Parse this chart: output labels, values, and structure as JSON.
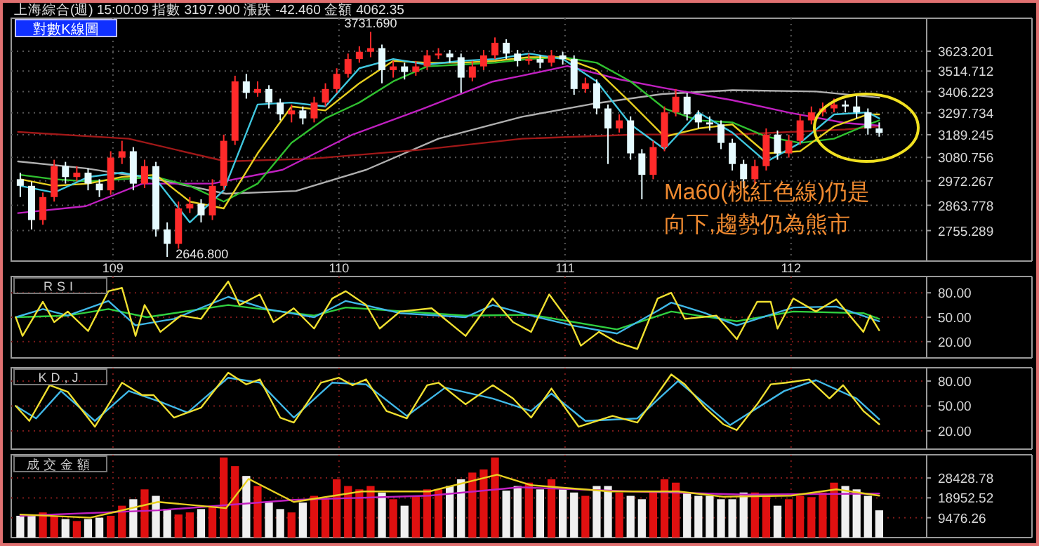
{
  "chart_data": [
    {
      "type": "candlestick",
      "title": "上海綜合(週) 15:00:09 指數 3197.900 漲跌 -42.460 金額 4062.35",
      "subtitle": "對數K線圖",
      "log": true,
      "grid": true,
      "xlim": [
        108.55,
        112.6
      ],
      "xticks": [
        109,
        110,
        111,
        112
      ],
      "ylim": [
        2630,
        3810
      ],
      "yticks": [
        2755.289,
        2863.778,
        2972.267,
        3080.756,
        3189.245,
        3297.734,
        3406.223,
        3514.712,
        3623.201
      ],
      "x": [
        108.59,
        108.64,
        108.69,
        108.74,
        108.79,
        108.84,
        108.89,
        108.94,
        108.99,
        109.04,
        109.09,
        109.14,
        109.19,
        109.24,
        109.29,
        109.34,
        109.39,
        109.44,
        109.49,
        109.54,
        109.59,
        109.64,
        109.69,
        109.74,
        109.79,
        109.84,
        109.89,
        109.94,
        109.99,
        110.04,
        110.09,
        110.14,
        110.19,
        110.24,
        110.29,
        110.34,
        110.39,
        110.44,
        110.49,
        110.54,
        110.59,
        110.64,
        110.69,
        110.74,
        110.79,
        110.84,
        110.89,
        110.94,
        110.99,
        111.04,
        111.09,
        111.14,
        111.19,
        111.24,
        111.29,
        111.34,
        111.39,
        111.44,
        111.49,
        111.54,
        111.59,
        111.64,
        111.69,
        111.74,
        111.79,
        111.84,
        111.89,
        111.94,
        111.99,
        112.04,
        112.09,
        112.14,
        112.19,
        112.24,
        112.29,
        112.34,
        112.39
      ],
      "ohlc": [
        [
          2980,
          3010,
          2900,
          2950
        ],
        [
          2950,
          2970,
          2760,
          2800
        ],
        [
          2800,
          2920,
          2780,
          2900
        ],
        [
          2900,
          3070,
          2880,
          3040
        ],
        [
          3040,
          3060,
          2960,
          2990
        ],
        [
          2990,
          3040,
          2970,
          3010
        ],
        [
          3010,
          3030,
          2930,
          2960
        ],
        [
          2960,
          2980,
          2900,
          2930
        ],
        [
          2930,
          3110,
          2910,
          3080
        ],
        [
          3080,
          3160,
          3050,
          3110
        ],
        [
          3110,
          3130,
          2930,
          2960
        ],
        [
          2960,
          3070,
          2940,
          3040
        ],
        [
          3040,
          3060,
          2730,
          2760
        ],
        [
          2760,
          2790,
          2646.8,
          2700
        ],
        [
          2700,
          2880,
          2680,
          2850
        ],
        [
          2850,
          2900,
          2830,
          2870
        ],
        [
          2870,
          2890,
          2790,
          2820
        ],
        [
          2820,
          2980,
          2800,
          2950
        ],
        [
          2950,
          3190,
          2930,
          3160
        ],
        [
          3160,
          3490,
          3140,
          3460
        ],
        [
          3460,
          3500,
          3370,
          3400
        ],
        [
          3400,
          3460,
          3380,
          3420
        ],
        [
          3420,
          3440,
          3320,
          3350
        ],
        [
          3350,
          3370,
          3260,
          3290
        ],
        [
          3290,
          3340,
          3250,
          3310
        ],
        [
          3310,
          3330,
          3240,
          3270
        ],
        [
          3270,
          3380,
          3250,
          3350
        ],
        [
          3350,
          3450,
          3330,
          3420
        ],
        [
          3420,
          3530,
          3400,
          3500
        ],
        [
          3500,
          3610,
          3480,
          3580
        ],
        [
          3580,
          3650,
          3560,
          3620
        ],
        [
          3620,
          3731.69,
          3590,
          3640
        ],
        [
          3640,
          3660,
          3450,
          3520
        ],
        [
          3520,
          3570,
          3480,
          3540
        ],
        [
          3540,
          3560,
          3470,
          3510
        ],
        [
          3510,
          3570,
          3490,
          3540
        ],
        [
          3540,
          3630,
          3520,
          3600
        ],
        [
          3600,
          3640,
          3580,
          3610
        ],
        [
          3610,
          3630,
          3560,
          3590
        ],
        [
          3590,
          3610,
          3400,
          3480
        ],
        [
          3480,
          3570,
          3460,
          3540
        ],
        [
          3540,
          3630,
          3520,
          3600
        ],
        [
          3600,
          3700,
          3580,
          3670
        ],
        [
          3670,
          3690,
          3580,
          3610
        ],
        [
          3610,
          3630,
          3540,
          3570
        ],
        [
          3570,
          3610,
          3550,
          3580
        ],
        [
          3580,
          3600,
          3530,
          3560
        ],
        [
          3560,
          3630,
          3540,
          3600
        ],
        [
          3600,
          3620,
          3550,
          3580
        ],
        [
          3580,
          3600,
          3390,
          3420
        ],
        [
          3420,
          3480,
          3400,
          3450
        ],
        [
          3450,
          3470,
          3290,
          3320
        ],
        [
          3320,
          3340,
          3050,
          3220
        ],
        [
          3220,
          3290,
          3200,
          3260
        ],
        [
          3260,
          3280,
          3070,
          3100
        ],
        [
          3100,
          3120,
          2890,
          3000
        ],
        [
          3000,
          3160,
          2980,
          3130
        ],
        [
          3130,
          3330,
          3110,
          3300
        ],
        [
          3300,
          3420,
          3280,
          3380
        ],
        [
          3380,
          3400,
          3260,
          3290
        ],
        [
          3290,
          3310,
          3220,
          3250
        ],
        [
          3250,
          3280,
          3210,
          3240
        ],
        [
          3240,
          3260,
          3120,
          3150
        ],
        [
          3150,
          3170,
          3020,
          3050
        ],
        [
          3050,
          3070,
          2940,
          2980
        ],
        [
          2980,
          3070,
          2960,
          3040
        ],
        [
          3040,
          3220,
          3020,
          3190
        ],
        [
          3190,
          3210,
          3070,
          3100
        ],
        [
          3100,
          3190,
          3080,
          3160
        ],
        [
          3160,
          3290,
          3140,
          3260
        ],
        [
          3260,
          3330,
          3240,
          3300
        ],
        [
          3300,
          3350,
          3280,
          3320
        ],
        [
          3320,
          3370,
          3300,
          3340
        ],
        [
          3340,
          3360,
          3300,
          3330
        ],
        [
          3330,
          3390,
          3270,
          3300
        ],
        [
          3300,
          3320,
          3190,
          3220
        ],
        [
          3220,
          3250,
          3180,
          3197.9
        ]
      ],
      "colors": [
        "#e6fbff",
        "#e6fbff",
        "#ff2a2a",
        "#ff2a2a",
        "#e6fbff",
        "#ff2a2a",
        "#e6fbff",
        "#e6fbff",
        "#ff2a2a",
        "#ff2a2a",
        "#e6fbff",
        "#ff2a2a",
        "#e6fbff",
        "#e6fbff",
        "#ff2a2a",
        "#ff2a2a",
        "#e6fbff",
        "#ff2a2a",
        "#ff2a2a",
        "#ff2a2a",
        "#e6fbff",
        "#ff2a2a",
        "#e6fbff",
        "#e6fbff",
        "#ff2a2a",
        "#e6fbff",
        "#ff2a2a",
        "#ff2a2a",
        "#ff2a2a",
        "#ff2a2a",
        "#ff2a2a",
        "#ff2a2a",
        "#e6fbff",
        "#ff2a2a",
        "#e6fbff",
        "#ff2a2a",
        "#ff2a2a",
        "#ff2a2a",
        "#e6fbff",
        "#e6fbff",
        "#ff2a2a",
        "#ff2a2a",
        "#ff2a2a",
        "#e6fbff",
        "#e6fbff",
        "#ff2a2a",
        "#e6fbff",
        "#ff2a2a",
        "#e6fbff",
        "#e6fbff",
        "#ff2a2a",
        "#e6fbff",
        "#e6fbff",
        "#ff2a2a",
        "#e6fbff",
        "#e6fbff",
        "#ff2a2a",
        "#ff2a2a",
        "#ff2a2a",
        "#e6fbff",
        "#e6fbff",
        "#e6fbff",
        "#e6fbff",
        "#e6fbff",
        "#e6fbff",
        "#ff2a2a",
        "#ff2a2a",
        "#e6fbff",
        "#ff2a2a",
        "#ff2a2a",
        "#ff2a2a",
        "#ff2a2a",
        "#ff2a2a",
        "#e6fbff",
        "#e6fbff",
        "#e6fbff",
        "#e6fbff"
      ],
      "series": [
        {
          "type": "line",
          "color": "#b0b0b0",
          "x": [
            108.58,
            108.88,
            109.19,
            109.5,
            109.81,
            110.12,
            110.44,
            110.81,
            111.12,
            111.43,
            111.74,
            112.11,
            112.39
          ],
          "values": [
            3062,
            3030,
            2980,
            2915,
            2927,
            3023,
            3170,
            3278,
            3343,
            3394,
            3414,
            3407,
            3375
          ]
        },
        {
          "type": "line",
          "color": "#a01818",
          "x": [
            108.58,
            109.07,
            109.5,
            109.88,
            110.37,
            110.81,
            111.31,
            111.74,
            112.24,
            112.39
          ],
          "values": [
            3203,
            3170,
            3062,
            3075,
            3118,
            3170,
            3190,
            3190,
            3215,
            3230
          ]
        },
        {
          "type": "line",
          "color": "#c020c0",
          "x": [
            108.58,
            108.88,
            109.13,
            109.44,
            109.75,
            110.06,
            110.37,
            110.68,
            110.81,
            111.01,
            111.24,
            111.43,
            111.74,
            111.99,
            112.24,
            112.39
          ],
          "values": [
            2830,
            2860,
            2960,
            2960,
            3023,
            3190,
            3318,
            3459,
            3490,
            3542,
            3471,
            3427,
            3362,
            3299,
            3247,
            3234
          ]
        },
        {
          "type": "line",
          "color": "#30c030",
          "x": [
            108.59,
            108.74,
            108.89,
            109.04,
            109.19,
            109.34,
            109.49,
            109.64,
            109.79,
            109.94,
            110.09,
            110.24,
            110.39,
            110.54,
            110.69,
            110.84,
            110.99,
            111.14,
            111.29,
            111.44,
            111.59,
            111.74,
            111.89,
            112.04,
            112.19,
            112.34,
            112.39
          ],
          "values": [
            3000,
            2980,
            2970,
            2980,
            2990,
            2950,
            2880,
            2960,
            3150,
            3270,
            3350,
            3460,
            3540,
            3550,
            3560,
            3580,
            3590,
            3560,
            3460,
            3320,
            3260,
            3250,
            3180,
            3150,
            3170,
            3240,
            3260
          ]
        },
        {
          "type": "line",
          "color": "#e8d020",
          "x": [
            108.59,
            108.74,
            108.89,
            109.04,
            109.19,
            109.34,
            109.49,
            109.64,
            109.79,
            109.94,
            110.09,
            110.24,
            110.39,
            110.54,
            110.69,
            110.84,
            110.99,
            111.14,
            111.29,
            111.44,
            111.59,
            111.74,
            111.89,
            112.04,
            112.19,
            112.34,
            112.39
          ],
          "values": [
            2980,
            2950,
            2960,
            2990,
            3000,
            2880,
            2850,
            3100,
            3330,
            3310,
            3450,
            3570,
            3560,
            3560,
            3570,
            3590,
            3590,
            3520,
            3350,
            3180,
            3220,
            3240,
            3100,
            3110,
            3230,
            3290,
            3290
          ]
        },
        {
          "type": "line",
          "color": "#40c8e0",
          "x": [
            108.59,
            108.74,
            108.89,
            109.04,
            109.19,
            109.34,
            109.49,
            109.64,
            109.79,
            109.94,
            110.09,
            110.24,
            110.39,
            110.54,
            110.69,
            110.84,
            110.99,
            111.14,
            111.29,
            111.44,
            111.59,
            111.74,
            111.89,
            112.04,
            112.19,
            112.34,
            112.39
          ],
          "values": [
            2950,
            2920,
            2990,
            3010,
            2980,
            2790,
            2930,
            3340,
            3350,
            3330,
            3530,
            3580,
            3550,
            3570,
            3580,
            3610,
            3580,
            3460,
            3240,
            3120,
            3300,
            3200,
            3060,
            3150,
            3290,
            3300,
            3270
          ]
        }
      ],
      "annotations": [
        {
          "text": "3731.690",
          "x": 110.14,
          "y": 3731.69
        },
        {
          "text": "2646.800",
          "x": 109.24,
          "y": 2646.8
        },
        "Ma60(桃紅色線)仍是",
        "向下,趨勢仍為熊市"
      ]
    },
    {
      "type": "line",
      "title": "RSI",
      "grid": true,
      "tick_labels": "y",
      "xlim": [
        108.55,
        112.6
      ],
      "xticks": [
        109,
        110,
        111,
        112
      ],
      "ylim": [
        0,
        100
      ],
      "yticks": [
        {
          "value": 20,
          "label": "20.00"
        },
        {
          "value": 50,
          "label": "50.00"
        },
        {
          "value": 80,
          "label": "80.00"
        }
      ],
      "series": [
        {
          "color": "#30d040",
          "x": [
            108.57,
            108.8,
            108.98,
            109.15,
            109.51,
            109.89,
            110.03,
            110.56,
            110.85,
            111.23,
            111.47,
            111.76,
            112.01,
            112.32,
            112.39
          ],
          "values": [
            50,
            52,
            60,
            50,
            65,
            52,
            62,
            52,
            53,
            35,
            57,
            45,
            57,
            55,
            48
          ]
        },
        {
          "color": "#40b8e8",
          "x": [
            108.57,
            108.69,
            108.8,
            108.98,
            109.1,
            109.27,
            109.51,
            109.68,
            109.89,
            110.03,
            110.27,
            110.56,
            110.68,
            110.85,
            111.03,
            111.23,
            111.41,
            111.47,
            111.62,
            111.76,
            112.01,
            112.2,
            112.39
          ],
          "values": [
            50,
            60,
            52,
            70,
            40,
            48,
            75,
            60,
            50,
            70,
            55,
            50,
            65,
            52,
            40,
            30,
            58,
            68,
            55,
            40,
            62,
            63,
            45
          ]
        },
        {
          "color": "#f0e030",
          "x": [
            108.57,
            108.6,
            108.69,
            108.74,
            108.8,
            108.89,
            108.98,
            109.04,
            109.1,
            109.14,
            109.21,
            109.3,
            109.39,
            109.51,
            109.56,
            109.65,
            109.71,
            109.8,
            109.89,
            109.97,
            110.03,
            110.12,
            110.18,
            110.27,
            110.41,
            110.56,
            110.68,
            110.77,
            110.85,
            110.93,
            111.03,
            111.07,
            111.15,
            111.23,
            111.32,
            111.41,
            111.47,
            111.53,
            111.67,
            111.76,
            111.85,
            111.91,
            111.94,
            112.01,
            112.11,
            112.2,
            112.32,
            112.35,
            112.39
          ],
          "values": [
            50,
            27,
            69,
            44,
            57,
            33,
            82,
            86,
            27,
            65,
            32,
            52,
            48,
            94,
            65,
            78,
            44,
            61,
            36,
            73,
            82,
            65,
            36,
            57,
            61,
            27,
            73,
            44,
            32,
            78,
            40,
            15,
            32,
            19,
            11,
            73,
            80,
            48,
            52,
            23,
            69,
            69,
            36,
            73,
            57,
            72,
            32,
            52,
            34
          ]
        }
      ]
    },
    {
      "type": "line",
      "title": "KD,J",
      "grid": true,
      "tick_labels": "y",
      "xlim": [
        108.55,
        112.6
      ],
      "xticks": [
        109,
        110,
        111,
        112
      ],
      "ylim": [
        -2,
        96
      ],
      "yticks": [
        {
          "value": 20,
          "label": "20.00"
        },
        {
          "value": 50,
          "label": "50.00"
        },
        {
          "value": 80,
          "label": "80.00"
        }
      ],
      "series": [
        {
          "color": "#40b8e8",
          "x": [
            108.57,
            108.66,
            108.77,
            108.92,
            109.07,
            109.21,
            109.33,
            109.51,
            109.65,
            109.8,
            109.97,
            110.12,
            110.3,
            110.47,
            110.68,
            110.85,
            110.94,
            111.09,
            111.32,
            111.5,
            111.73,
            111.97,
            112.11,
            112.29,
            112.39
          ],
          "values": [
            50,
            35,
            68,
            32,
            68,
            55,
            42,
            84,
            78,
            36,
            78,
            76,
            38,
            72,
            59,
            44,
            65,
            32,
            35,
            80,
            27,
            68,
            81,
            59,
            34
          ]
        },
        {
          "color": "#f0e030",
          "x": [
            108.57,
            108.63,
            108.72,
            108.8,
            108.92,
            109.04,
            109.13,
            109.18,
            109.27,
            109.39,
            109.51,
            109.59,
            109.65,
            109.74,
            109.8,
            109.92,
            110.0,
            110.06,
            110.12,
            110.21,
            110.3,
            110.39,
            110.44,
            110.56,
            110.68,
            110.77,
            110.85,
            110.94,
            111.06,
            111.21,
            111.32,
            111.47,
            111.53,
            111.62,
            111.7,
            111.76,
            111.85,
            111.91,
            111.98,
            112.08,
            112.17,
            112.23,
            112.32,
            112.39
          ],
          "values": [
            50,
            32,
            75,
            67,
            25,
            78,
            63,
            63,
            36,
            48,
            90,
            76,
            82,
            36,
            30,
            78,
            84,
            75,
            82,
            44,
            35,
            75,
            78,
            52,
            75,
            59,
            36,
            71,
            25,
            38,
            30,
            88,
            76,
            48,
            28,
            21,
            52,
            76,
            78,
            82,
            59,
            75,
            44,
            28
          ]
        }
      ]
    },
    {
      "type": "bar",
      "title": "成交金額",
      "grid": true,
      "tick_labels": "y",
      "xlim": [
        108.55,
        112.6
      ],
      "xticks": [
        109,
        110,
        111,
        112
      ],
      "ylim": [
        0,
        39500
      ],
      "yticks": [
        9476.26,
        18952.52,
        28428.78
      ],
      "x": [
        108.59,
        108.64,
        108.69,
        108.74,
        108.79,
        108.84,
        108.89,
        108.94,
        108.99,
        109.04,
        109.09,
        109.14,
        109.19,
        109.24,
        109.29,
        109.34,
        109.39,
        109.44,
        109.49,
        109.54,
        109.59,
        109.64,
        109.69,
        109.74,
        109.79,
        109.84,
        109.89,
        109.94,
        109.99,
        110.04,
        110.09,
        110.14,
        110.19,
        110.24,
        110.29,
        110.34,
        110.39,
        110.44,
        110.49,
        110.54,
        110.59,
        110.64,
        110.69,
        110.74,
        110.79,
        110.84,
        110.89,
        110.94,
        110.99,
        111.04,
        111.09,
        111.14,
        111.19,
        111.24,
        111.29,
        111.34,
        111.39,
        111.44,
        111.49,
        111.54,
        111.59,
        111.64,
        111.69,
        111.74,
        111.79,
        111.84,
        111.89,
        111.94,
        111.99,
        112.04,
        112.09,
        112.14,
        112.19,
        112.24,
        112.29,
        112.34,
        112.39
      ],
      "series": [
        {
          "type": "bar",
          "values": [
            10400,
            11000,
            12000,
            10400,
            8800,
            7900,
            8800,
            9500,
            10400,
            15200,
            18300,
            23000,
            19900,
            13600,
            11000,
            12000,
            13600,
            15200,
            38200,
            34100,
            29400,
            24600,
            16700,
            13600,
            12000,
            16700,
            19900,
            18300,
            27800,
            24600,
            23000,
            24600,
            21500,
            18300,
            15200,
            19900,
            23000,
            23000,
            24600,
            27800,
            31000,
            32500,
            38200,
            22400,
            24600,
            26200,
            23000,
            27800,
            23000,
            21500,
            19900,
            24600,
            24600,
            21500,
            19900,
            18300,
            21500,
            27800,
            26200,
            21500,
            19900,
            19900,
            18300,
            18300,
            21500,
            21500,
            19900,
            15200,
            18300,
            19900,
            19300,
            21500,
            26200,
            24600,
            23000,
            19900,
            13000
          ],
          "colors": [
            "#f0f0f0",
            "#f0f0f0",
            "#e01010",
            "#e01010",
            "#f0f0f0",
            "#e01010",
            "#f0f0f0",
            "#f0f0f0",
            "#e01010",
            "#e01010",
            "#f0f0f0",
            "#e01010",
            "#f0f0f0",
            "#f0f0f0",
            "#e01010",
            "#e01010",
            "#f0f0f0",
            "#e01010",
            "#e01010",
            "#e01010",
            "#f0f0f0",
            "#e01010",
            "#f0f0f0",
            "#f0f0f0",
            "#e01010",
            "#f0f0f0",
            "#e01010",
            "#e01010",
            "#e01010",
            "#e01010",
            "#e01010",
            "#e01010",
            "#f0f0f0",
            "#e01010",
            "#f0f0f0",
            "#e01010",
            "#e01010",
            "#e01010",
            "#f0f0f0",
            "#f0f0f0",
            "#e01010",
            "#e01010",
            "#e01010",
            "#f0f0f0",
            "#f0f0f0",
            "#e01010",
            "#f0f0f0",
            "#e01010",
            "#f0f0f0",
            "#f0f0f0",
            "#e01010",
            "#f0f0f0",
            "#f0f0f0",
            "#e01010",
            "#f0f0f0",
            "#f0f0f0",
            "#e01010",
            "#e01010",
            "#e01010",
            "#f0f0f0",
            "#f0f0f0",
            "#f0f0f0",
            "#f0f0f0",
            "#f0f0f0",
            "#f0f0f0",
            "#e01010",
            "#e01010",
            "#f0f0f0",
            "#e01010",
            "#e01010",
            "#e01010",
            "#e01010",
            "#e01010",
            "#f0f0f0",
            "#f0f0f0",
            "#f0f0f0",
            "#f0f0f0"
          ]
        },
        {
          "type": "line",
          "color": "#c020c0",
          "x": [
            108.59,
            109.2,
            109.8,
            110.4,
            110.8,
            111.3,
            111.8,
            112.39
          ],
          "values": [
            10400,
            13000,
            18000,
            20000,
            24000,
            22000,
            20500,
            21000
          ]
        },
        {
          "type": "line",
          "color": "#e8d020",
          "x": [
            108.59,
            108.9,
            109.2,
            109.5,
            109.6,
            109.8,
            110.1,
            110.4,
            110.7,
            110.85,
            111.2,
            111.5,
            111.7,
            112.0,
            112.2,
            112.39
          ],
          "values": [
            11000,
            9500,
            17000,
            14000,
            28000,
            17000,
            22000,
            22000,
            30000,
            25000,
            22000,
            22000,
            19500,
            20000,
            23000,
            20000
          ]
        }
      ]
    }
  ]
}
